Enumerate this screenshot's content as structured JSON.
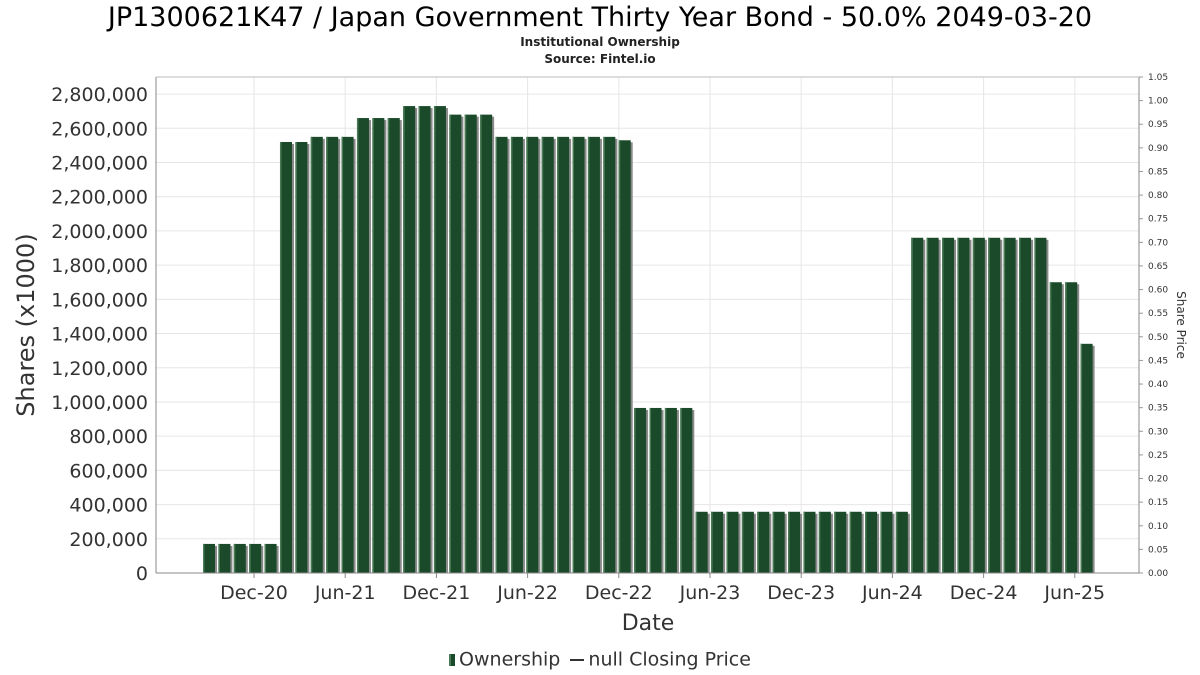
{
  "header": {
    "title": "JP1300621K47 / Japan Government Thirty Year Bond - 50.0% 2049-03-20",
    "subtitle1": "Institutional Ownership",
    "subtitle2": "Source: Fintel.io"
  },
  "legend": {
    "ownership": "Ownership",
    "price": "null Closing Price"
  },
  "colors": {
    "bar": "#1b4a2a",
    "bar_highlight": "#4a7a55",
    "bar_shadow": "#8a8a8a",
    "grid": "#e6e6e6"
  },
  "chart_data": {
    "type": "bar",
    "xlabel": "Date",
    "ylabel": "Shares (x1000)",
    "y2label": "Share Price",
    "ylim": [
      0,
      2900000
    ],
    "y2lim": [
      0,
      1.05
    ],
    "yticks": [
      "0",
      "200,000",
      "400,000",
      "600,000",
      "800,000",
      "1,000,000",
      "1,200,000",
      "1,400,000",
      "1,600,000",
      "1,800,000",
      "2,000,000",
      "2,200,000",
      "2,400,000",
      "2,600,000",
      "2,800,000"
    ],
    "y2ticks": [
      "0.00",
      "0.05",
      "0.10",
      "0.15",
      "0.20",
      "0.25",
      "0.30",
      "0.35",
      "0.40",
      "0.45",
      "0.50",
      "0.55",
      "0.60",
      "0.65",
      "0.70",
      "0.75",
      "0.80",
      "0.85",
      "0.90",
      "0.95",
      "1.00",
      "1.05"
    ],
    "xticks": [
      "Dec-20",
      "Jun-21",
      "Dec-21",
      "Jun-22",
      "Dec-22",
      "Jun-23",
      "Dec-23",
      "Jun-24",
      "Dec-24",
      "Jun-25"
    ],
    "grid": true,
    "legend_position": "bottom",
    "series": [
      {
        "name": "Ownership",
        "values": [
          170000,
          170000,
          170000,
          170000,
          170000,
          2520000,
          2520000,
          2550000,
          2550000,
          2550000,
          2660000,
          2660000,
          2660000,
          2730000,
          2730000,
          2730000,
          2680000,
          2680000,
          2680000,
          2550000,
          2550000,
          2550000,
          2550000,
          2550000,
          2550000,
          2550000,
          2550000,
          2530000,
          965000,
          965000,
          965000,
          965000,
          358000,
          358000,
          358000,
          358000,
          358000,
          358000,
          358000,
          358000,
          358000,
          358000,
          358000,
          358000,
          358000,
          358000,
          1960000,
          1960000,
          1960000,
          1960000,
          1960000,
          1960000,
          1960000,
          1960000,
          1960000,
          1700000,
          1700000,
          1340000
        ]
      },
      {
        "name": "null Closing Price",
        "values": []
      }
    ]
  }
}
